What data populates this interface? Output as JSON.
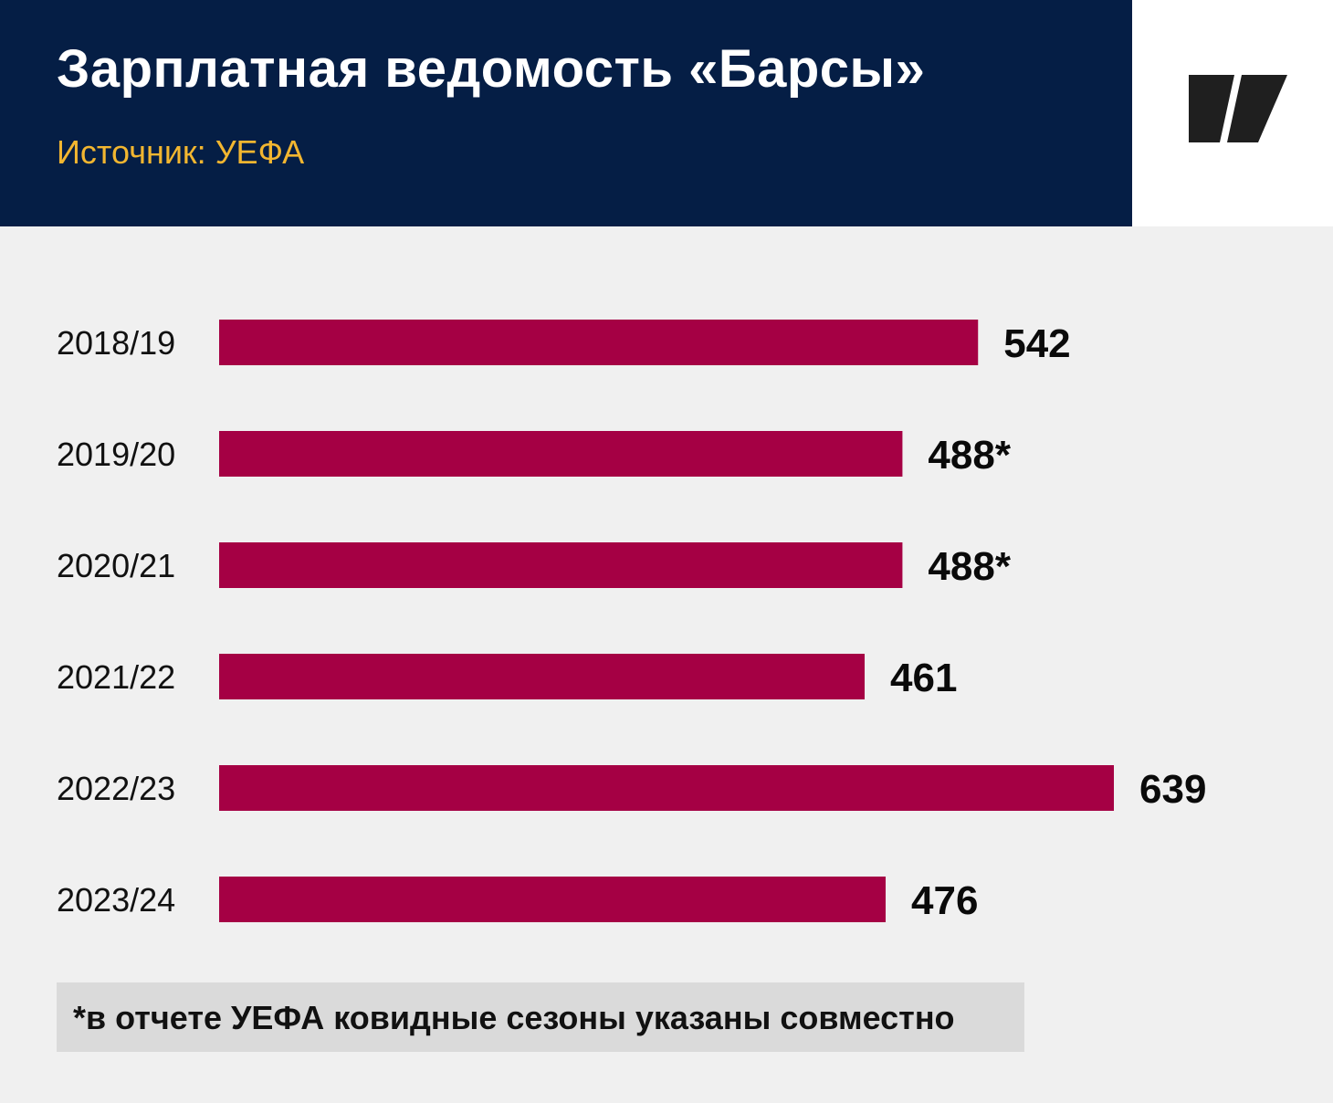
{
  "header": {
    "title": "Зарплатная ведомость «Барсы»",
    "source": "Источник: УЕФА"
  },
  "logo": {
    "icon": "brand-logo-icon"
  },
  "colors": {
    "header_bg": "#051e45",
    "accent": "#f2b630",
    "bar": "#a50044",
    "background": "#f0f0f0"
  },
  "chart_data": {
    "type": "bar",
    "orientation": "horizontal",
    "categories": [
      "2018/19",
      "2019/20",
      "2020/21",
      "2021/22",
      "2022/23",
      "2023/24"
    ],
    "values": [
      542,
      488,
      488,
      461,
      639,
      476
    ],
    "value_labels": [
      "542",
      "488*",
      "488*",
      "461",
      "639",
      "476"
    ],
    "title": "Зарплатная ведомость «Барсы»",
    "subtitle": "Источник: УЕФА",
    "xlabel": "",
    "ylabel": "",
    "xlim": [
      0,
      639
    ],
    "grid": false,
    "legend": "none"
  },
  "footnote": "*в отчете УЕФА ковидные сезоны указаны совместно"
}
